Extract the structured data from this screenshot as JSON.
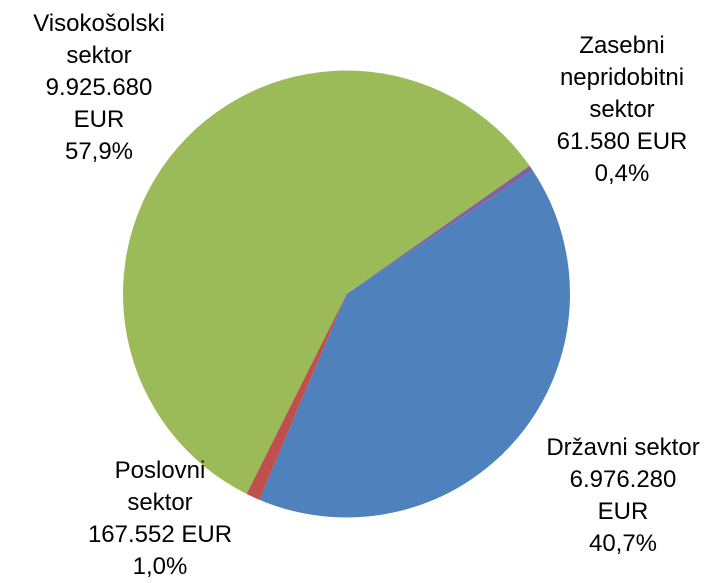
{
  "chart_data": {
    "type": "pie",
    "categories": [
      "Zasebni nepridobitni sektor",
      "Državni sektor",
      "Poslovni sektor",
      "Visokošolski sektor"
    ],
    "amount_labels": [
      "61.580 EUR",
      "6.976.280 EUR",
      "167.552 EUR",
      "9.925.680 EUR"
    ],
    "values": [
      0.4,
      40.7,
      1.0,
      57.9
    ],
    "value_labels": [
      "0,4%",
      "40,7%",
      "1,0%",
      "57,9%"
    ],
    "colors": [
      "#8064a2",
      "#4f81bd",
      "#c0504d",
      "#9bbb59"
    ]
  }
}
